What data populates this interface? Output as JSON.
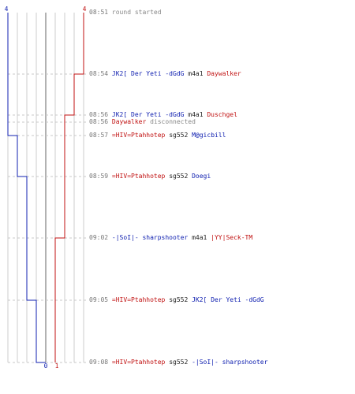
{
  "scoreboard": {
    "blue_team_color": "#1020b0",
    "red_team_color": "#c01010",
    "top_labels": {
      "blue": "4",
      "red": "4"
    },
    "bottom_labels": {
      "blue": "0",
      "red": "1"
    },
    "blue_steps": [
      "08:57",
      "08:59",
      "09:05",
      "09:08"
    ],
    "red_steps": [
      "08:54",
      "08:56",
      "09:02"
    ]
  },
  "events": [
    {
      "time": "08:51",
      "type": "system",
      "text": "round started"
    },
    {
      "time": "08:54",
      "type": "kill",
      "killer": "JK2[ Der Yeti -dGdG",
      "killer_team": "blue",
      "weapon": "m4a1",
      "victim": "Daywalker",
      "victim_team": "red"
    },
    {
      "time": "08:56",
      "type": "kill",
      "killer": "JK2[ Der Yeti -dGdG",
      "killer_team": "blue",
      "weapon": "m4a1",
      "victim": "Duschgel",
      "victim_team": "red"
    },
    {
      "time": "08:56",
      "type": "disconnect",
      "player": "Daywalker",
      "player_team": "red",
      "text": "disconnected"
    },
    {
      "time": "08:57",
      "type": "kill",
      "killer": "=HIV=Ptahhotep",
      "killer_team": "red",
      "weapon": "sg552",
      "victim": "M@gicbill",
      "victim_team": "blue"
    },
    {
      "time": "08:59",
      "type": "kill",
      "killer": "=HIV=Ptahhotep",
      "killer_team": "red",
      "weapon": "sg552",
      "victim": "Doegi",
      "victim_team": "blue"
    },
    {
      "time": "09:02",
      "type": "kill",
      "killer": "-|SoI|- sharpshooter",
      "killer_team": "blue",
      "weapon": "m4a1",
      "victim": "|YY|Seck-TM",
      "victim_team": "red"
    },
    {
      "time": "09:05",
      "type": "kill",
      "killer": "=HIV=Ptahhotep",
      "killer_team": "red",
      "weapon": "sg552",
      "victim": "JK2[ Der Yeti -dGdG",
      "victim_team": "blue"
    },
    {
      "time": "09:08",
      "type": "kill",
      "killer": "=HIV=Ptahhotep",
      "killer_team": "red",
      "weapon": "sg552",
      "victim": "-|SoI|- sharpshooter",
      "victim_team": "blue"
    }
  ]
}
